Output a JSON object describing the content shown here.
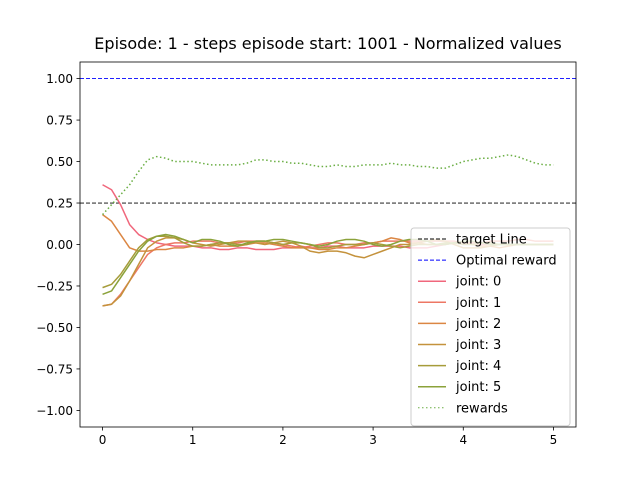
{
  "chart_data": {
    "type": "line",
    "title": "Episode: 1 - steps episode start: 1001 - Normalized values",
    "xlabel": "",
    "ylabel": "",
    "xlim": [
      -0.25,
      5.25
    ],
    "ylim": [
      -1.1,
      1.1
    ],
    "xticks": [
      0,
      1,
      2,
      3,
      4,
      5
    ],
    "xtick_labels": [
      "0",
      "1",
      "2",
      "3",
      "4",
      "5"
    ],
    "yticks": [
      1.0,
      0.75,
      0.5,
      0.25,
      0.0,
      -0.25,
      -0.5,
      -0.75,
      -1.0
    ],
    "ytick_labels": [
      "1.00",
      "0.75",
      "0.50",
      "0.25",
      "0.00",
      "−0.25",
      "−0.50",
      "−0.75",
      "−1.00"
    ],
    "grid": false,
    "legend_position": "lower-right",
    "hlines": [
      {
        "name": "target Line",
        "y": 0.25,
        "color": "#000000",
        "style": "dashed"
      },
      {
        "name": "Optimal reward",
        "y": 1.0,
        "color": "#0000ff",
        "style": "dashed"
      }
    ],
    "x": [
      0,
      0.1,
      0.2,
      0.3,
      0.4,
      0.5,
      0.6,
      0.7,
      0.8,
      0.9,
      1.0,
      1.1,
      1.2,
      1.3,
      1.4,
      1.5,
      1.6,
      1.7,
      1.8,
      1.9,
      2.0,
      2.1,
      2.2,
      2.3,
      2.4,
      2.5,
      2.6,
      2.7,
      2.8,
      2.9,
      3.0,
      3.1,
      3.2,
      3.3,
      3.4,
      3.5,
      3.6,
      3.7,
      3.8,
      3.9,
      4.0,
      4.1,
      4.2,
      4.3,
      4.4,
      4.5,
      4.6,
      4.7,
      4.8,
      4.9,
      5.0
    ],
    "series": [
      {
        "name": "joint: 0",
        "color": "#f0677c",
        "style": "solid",
        "values": [
          0.36,
          0.33,
          0.24,
          0.12,
          0.06,
          0.03,
          0.01,
          0.0,
          -0.01,
          -0.01,
          -0.01,
          -0.02,
          -0.02,
          -0.03,
          -0.03,
          -0.02,
          -0.02,
          -0.03,
          -0.03,
          -0.03,
          -0.02,
          -0.02,
          -0.01,
          -0.02,
          -0.02,
          -0.01,
          -0.01,
          -0.02,
          -0.02,
          -0.02,
          -0.01,
          -0.01,
          -0.01,
          -0.01,
          -0.02,
          -0.02,
          -0.02,
          -0.01,
          0.0,
          0.01,
          0.01,
          0.0,
          0.0,
          0.0,
          0.0,
          0.0,
          0.0,
          0.0,
          0.0,
          0.0,
          0.0
        ]
      },
      {
        "name": "joint: 1",
        "color": "#ed7764",
        "style": "solid",
        "values": [
          -0.37,
          -0.36,
          -0.3,
          -0.22,
          -0.14,
          -0.06,
          -0.02,
          0.0,
          0.01,
          0.01,
          0.02,
          0.02,
          0.02,
          0.01,
          0.01,
          0.01,
          0.02,
          0.02,
          0.02,
          0.01,
          0.0,
          -0.01,
          -0.02,
          -0.01,
          0.0,
          0.01,
          0.01,
          0.0,
          0.0,
          0.01,
          0.01,
          0.02,
          0.02,
          0.02,
          0.02,
          0.02,
          0.02,
          0.02,
          0.02,
          0.02,
          0.01,
          0.01,
          0.01,
          0.02,
          0.02,
          0.02,
          0.03,
          0.03,
          0.02,
          0.02,
          0.02
        ]
      },
      {
        "name": "joint: 2",
        "color": "#db8643",
        "style": "solid",
        "values": [
          0.18,
          0.14,
          0.06,
          -0.02,
          -0.04,
          -0.04,
          -0.03,
          -0.03,
          -0.02,
          -0.02,
          -0.01,
          -0.01,
          0.0,
          -0.01,
          -0.01,
          -0.01,
          0.0,
          0.01,
          0.01,
          0.0,
          -0.01,
          -0.02,
          -0.02,
          -0.02,
          -0.03,
          -0.03,
          -0.02,
          -0.02,
          -0.01,
          0.0,
          0.01,
          0.02,
          0.04,
          0.03,
          0.01,
          0.01,
          0.0,
          0.0,
          0.0,
          0.01,
          0.01,
          0.0,
          -0.01,
          -0.01,
          -0.02,
          -0.01,
          0.0,
          0.0,
          0.0,
          0.0,
          0.0
        ]
      },
      {
        "name": "joint: 3",
        "color": "#c4923c",
        "style": "solid",
        "values": [
          -0.37,
          -0.36,
          -0.31,
          -0.22,
          -0.12,
          -0.02,
          0.02,
          0.04,
          0.04,
          0.03,
          0.01,
          0.0,
          -0.01,
          0.0,
          0.01,
          0.02,
          0.02,
          0.01,
          0.0,
          0.01,
          0.02,
          0.01,
          -0.01,
          -0.04,
          -0.05,
          -0.04,
          -0.04,
          -0.05,
          -0.07,
          -0.08,
          -0.06,
          -0.04,
          -0.02,
          0.0,
          0.0,
          0.01,
          0.02,
          0.03,
          0.02,
          0.0,
          -0.02,
          -0.02,
          -0.02,
          -0.01,
          0.0,
          0.0,
          0.0,
          0.0,
          0.0,
          0.0,
          0.0
        ]
      },
      {
        "name": "joint: 4",
        "color": "#a69c3a",
        "style": "solid",
        "values": [
          -0.26,
          -0.24,
          -0.18,
          -0.1,
          -0.02,
          0.03,
          0.05,
          0.05,
          0.04,
          0.01,
          -0.01,
          -0.01,
          0.0,
          0.01,
          0.01,
          0.0,
          0.0,
          0.02,
          0.02,
          0.01,
          0.0,
          0.01,
          0.01,
          0.0,
          -0.02,
          -0.02,
          -0.01,
          0.0,
          0.0,
          0.0,
          0.01,
          0.0,
          -0.01,
          -0.02,
          -0.01,
          0.0,
          0.0,
          0.0,
          0.01,
          0.01,
          0.0,
          0.0,
          0.01,
          0.01,
          0.0,
          0.0,
          0.0,
          0.0,
          0.0,
          0.0,
          0.0
        ]
      },
      {
        "name": "joint: 5",
        "color": "#8ba23a",
        "style": "solid",
        "values": [
          -0.3,
          -0.28,
          -0.2,
          -0.12,
          -0.04,
          0.02,
          0.05,
          0.06,
          0.05,
          0.03,
          0.01,
          0.03,
          0.03,
          0.02,
          0.0,
          -0.01,
          0.01,
          0.02,
          0.02,
          0.03,
          0.03,
          0.02,
          0.01,
          0.0,
          -0.01,
          0.0,
          0.02,
          0.03,
          0.03,
          0.02,
          0.0,
          -0.01,
          0.0,
          0.02,
          0.03,
          0.03,
          0.02,
          0.0,
          0.0,
          0.01,
          0.02,
          0.02,
          0.01,
          0.0,
          0.0,
          0.0,
          0.0,
          0.0,
          0.0,
          0.0,
          0.0
        ]
      },
      {
        "name": "rewards",
        "color": "#6aae43",
        "style": "dotted",
        "values": [
          0.18,
          0.24,
          0.3,
          0.36,
          0.44,
          0.51,
          0.53,
          0.52,
          0.5,
          0.5,
          0.5,
          0.49,
          0.48,
          0.48,
          0.48,
          0.48,
          0.49,
          0.51,
          0.51,
          0.5,
          0.5,
          0.49,
          0.49,
          0.48,
          0.47,
          0.47,
          0.48,
          0.47,
          0.47,
          0.48,
          0.48,
          0.48,
          0.49,
          0.48,
          0.48,
          0.47,
          0.47,
          0.46,
          0.46,
          0.48,
          0.5,
          0.51,
          0.52,
          0.52,
          0.53,
          0.54,
          0.53,
          0.51,
          0.49,
          0.48,
          0.48
        ]
      }
    ]
  }
}
